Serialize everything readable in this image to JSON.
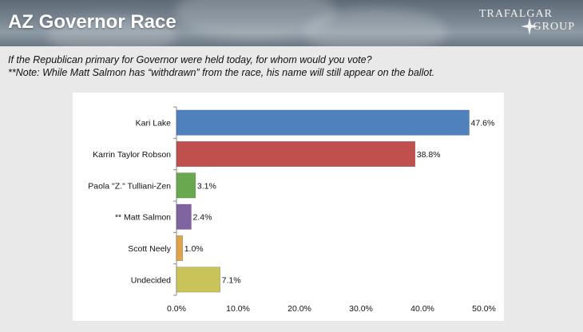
{
  "header": {
    "title": "AZ Governor Race",
    "logo_line1": "TRAFALGAR",
    "logo_line2": "GROUP"
  },
  "question": {
    "line1": "If the Republican primary for Governor were held today, for whom would you vote?",
    "line2": "**Note: While Matt Salmon has “withdrawn” from the race, his name will still appear on the ballot."
  },
  "colors": {
    "blue": "#4f81bd",
    "red": "#c0504d",
    "green": "#6aa84f",
    "purple": "#8064a2",
    "orange": "#e0a34a",
    "yellow": "#c9c35a"
  },
  "chart_data": {
    "type": "bar",
    "orientation": "horizontal",
    "categories": [
      "Kari Lake",
      "Karrin Taylor Robson",
      "Paola \"Z.\" Tulliani-Zen",
      "** Matt Salmon",
      "Scott Neely",
      "Undecided"
    ],
    "values": [
      47.6,
      38.8,
      3.1,
      2.4,
      1.0,
      7.1
    ],
    "value_labels": [
      "47.6%",
      "38.8%",
      "3.1%",
      "2.4%",
      "1.0%",
      "7.1%"
    ],
    "bar_colors": [
      "#4f81bd",
      "#c0504d",
      "#6aa84f",
      "#8064a2",
      "#e0a34a",
      "#c9c35a"
    ],
    "xlim": [
      0,
      50
    ],
    "xticks": [
      0,
      10,
      20,
      30,
      40,
      50
    ],
    "xtick_labels": [
      "0.0%",
      "10.0%",
      "20.0%",
      "30.0%",
      "40.0%",
      "50.0%"
    ],
    "grid": false,
    "title": "",
    "xlabel": "",
    "ylabel": ""
  }
}
